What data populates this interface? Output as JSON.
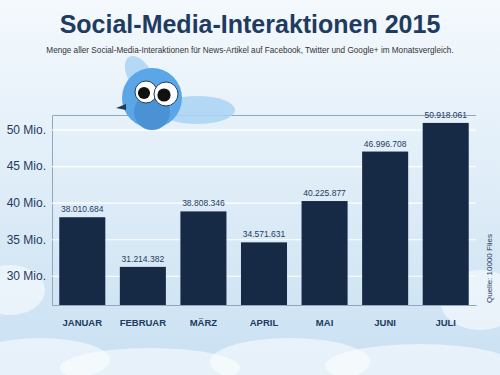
{
  "chart_data": {
    "type": "bar",
    "title": "Social-Media-Interaktionen 2015",
    "subtitle": "Menge aller Social-Media-Interaktionen für News-Artikel auf Facebook, Twitter und Google+ im Monatsvergleich.",
    "source": "Quelle: 10000 Flies",
    "categories": [
      "JANUAR",
      "FEBRUAR",
      "MÄRZ",
      "APRIL",
      "MAI",
      "JUNI",
      "JULI"
    ],
    "values": [
      38.010684,
      31.214382,
      38.808346,
      34.571631,
      40.225877,
      46.996708,
      50.918061
    ],
    "value_labels": [
      "38.010.684",
      "31.214.382",
      "38.808.346",
      "34.571.631",
      "40.225.877",
      "46.996.708",
      "50.918.061"
    ],
    "color": "#172a45",
    "ylim": [
      26,
      52
    ],
    "yticks": [
      {
        "value": 30,
        "label": "30 Mio."
      },
      {
        "value": 35,
        "label": "35 Mio."
      },
      {
        "value": 40,
        "label": "40 Mio."
      },
      {
        "value": 45,
        "label": "45 Mio."
      },
      {
        "value": 50,
        "label": "50 Mio."
      }
    ],
    "grid": true,
    "data_labels": true
  }
}
